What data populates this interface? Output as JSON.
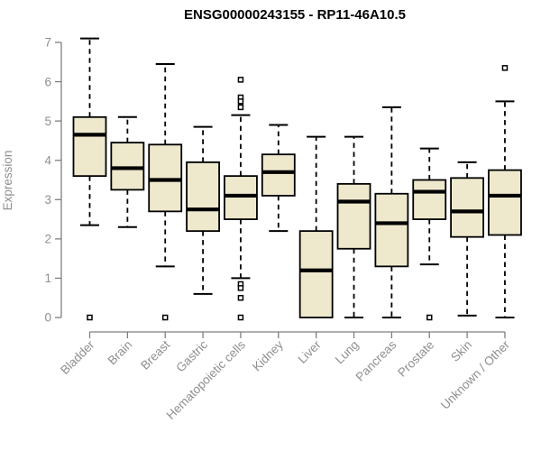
{
  "title": "ENSG00000243155 - RP11-46A10.5",
  "chart_data": {
    "type": "boxplot",
    "title": "ENSG00000243155 - RP11-46A10.5",
    "xlabel": "",
    "ylabel": "Expression",
    "ylim": [
      0,
      7
    ],
    "yticks": [
      0,
      1,
      2,
      3,
      4,
      5,
      6,
      7
    ],
    "grid": false,
    "legend": false,
    "categories": [
      "Bladder",
      "Brain",
      "Breast",
      "Gastric",
      "Hematopoietic cells",
      "Kidney",
      "Liver",
      "Lung",
      "Pancreas",
      "Prostate",
      "Skin",
      "Unknown / Other"
    ],
    "series": [
      {
        "name": "Bladder",
        "whisker_low": 2.35,
        "q1": 3.6,
        "median": 4.65,
        "q3": 5.1,
        "whisker_high": 7.1,
        "outliers": [
          0
        ]
      },
      {
        "name": "Brain",
        "whisker_low": 2.3,
        "q1": 3.25,
        "median": 3.8,
        "q3": 4.45,
        "whisker_high": 5.1,
        "outliers": []
      },
      {
        "name": "Breast",
        "whisker_low": 1.3,
        "q1": 2.7,
        "median": 3.5,
        "q3": 4.4,
        "whisker_high": 6.45,
        "outliers": [
          0
        ]
      },
      {
        "name": "Gastric",
        "whisker_low": 0.6,
        "q1": 2.2,
        "median": 2.75,
        "q3": 3.95,
        "whisker_high": 4.85,
        "outliers": []
      },
      {
        "name": "Hematopoietic cells",
        "whisker_low": 1.0,
        "q1": 2.5,
        "median": 3.1,
        "q3": 3.6,
        "whisker_high": 5.15,
        "outliers": [
          6.05,
          5.6,
          5.5,
          5.35,
          0.85,
          0.75,
          0.5,
          0
        ]
      },
      {
        "name": "Kidney",
        "whisker_low": 2.2,
        "q1": 3.1,
        "median": 3.7,
        "q3": 4.15,
        "whisker_high": 4.9,
        "outliers": []
      },
      {
        "name": "Liver",
        "whisker_low": 0,
        "q1": 0,
        "median": 1.2,
        "q3": 2.2,
        "whisker_high": 4.6,
        "outliers": []
      },
      {
        "name": "Lung",
        "whisker_low": 0,
        "q1": 1.75,
        "median": 2.95,
        "q3": 3.4,
        "whisker_high": 4.6,
        "outliers": []
      },
      {
        "name": "Pancreas",
        "whisker_low": 0,
        "q1": 1.3,
        "median": 2.4,
        "q3": 3.15,
        "whisker_high": 5.35,
        "outliers": []
      },
      {
        "name": "Prostate",
        "whisker_low": 1.35,
        "q1": 2.5,
        "median": 3.2,
        "q3": 3.5,
        "whisker_high": 4.3,
        "outliers": [
          0
        ]
      },
      {
        "name": "Skin",
        "whisker_low": 0.05,
        "q1": 2.05,
        "median": 2.7,
        "q3": 3.55,
        "whisker_high": 3.95,
        "outliers": []
      },
      {
        "name": "Unknown / Other",
        "whisker_low": 0,
        "q1": 2.1,
        "median": 3.1,
        "q3": 3.75,
        "whisker_high": 5.5,
        "outliers": [
          6.35
        ]
      }
    ],
    "colors": {
      "box_fill": "#eee8cd",
      "line": "#000000",
      "axis": "#7f7f7f",
      "text_muted": "#8f8f8f",
      "title": "#000000",
      "outlier_fill": "#ffffff",
      "background": "#ffffff"
    }
  }
}
